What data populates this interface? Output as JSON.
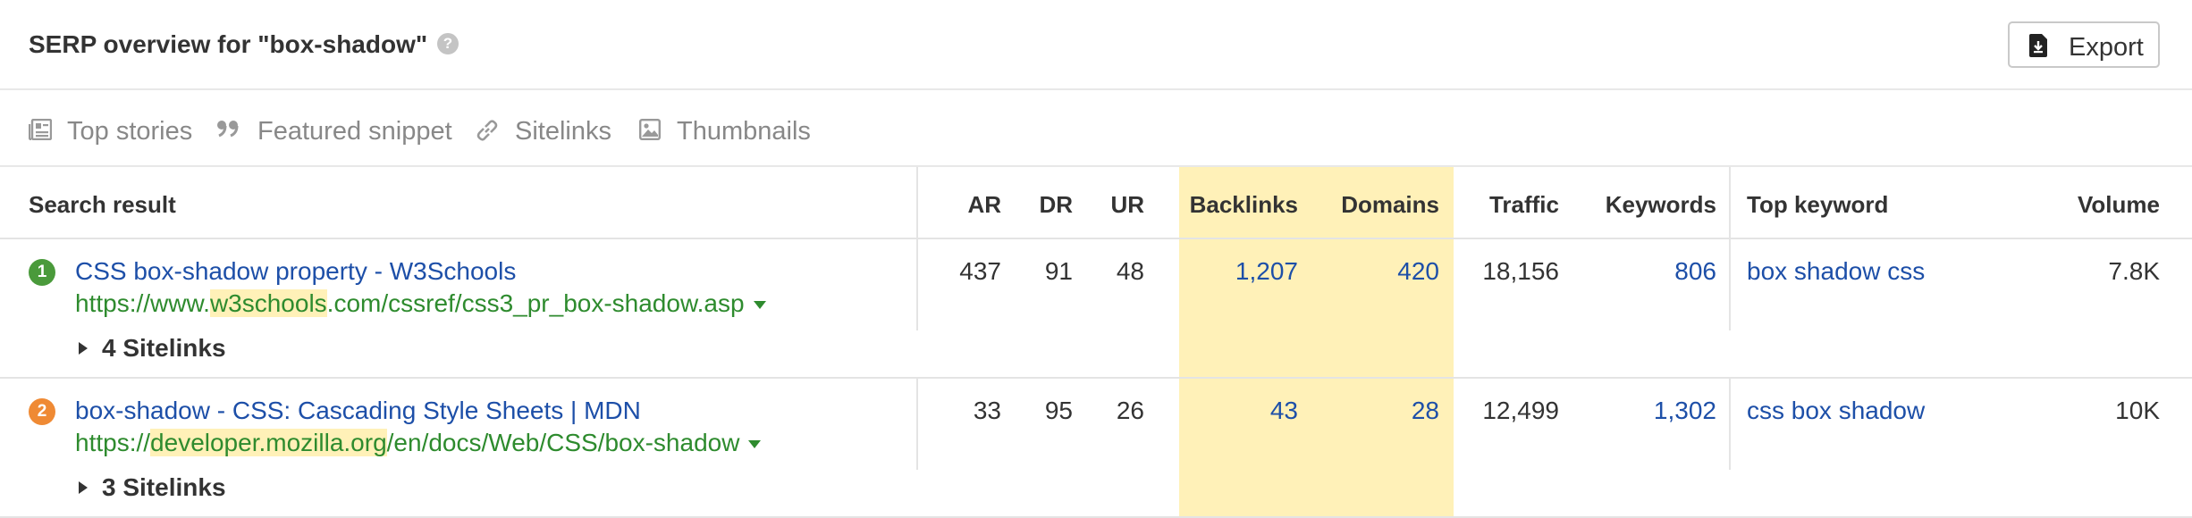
{
  "header": {
    "title": "SERP overview for \"box-shadow\"",
    "help_symbol": "?",
    "export_label": "Export"
  },
  "features": [
    {
      "label": "Top stories",
      "icon": "newspaper-icon"
    },
    {
      "label": "Featured snippet",
      "icon": "quote-icon"
    },
    {
      "label": "Sitelinks",
      "icon": "link-icon"
    },
    {
      "label": "Thumbnails",
      "icon": "image-icon"
    }
  ],
  "table": {
    "columns": {
      "search_result": "Search result",
      "ar": "AR",
      "dr": "DR",
      "ur": "UR",
      "backlinks": "Backlinks",
      "domains": "Domains",
      "traffic": "Traffic",
      "keywords": "Keywords",
      "top_keyword": "Top keyword",
      "volume": "Volume"
    },
    "rows": [
      {
        "position": "1",
        "badge_color": "#4a9a3b",
        "title": "CSS box-shadow property - W3Schools",
        "url_prefix": "https://www.",
        "url_domain": "w3schools",
        "url_suffix": ".com/cssref/css3_pr_box-shadow.asp",
        "sitelinks": "4 Sitelinks",
        "ar": "437",
        "dr": "91",
        "ur": "48",
        "backlinks": "1,207",
        "domains": "420",
        "traffic": "18,156",
        "keywords": "806",
        "top_keyword": "box shadow css",
        "volume": "7.8K"
      },
      {
        "position": "2",
        "badge_color": "#ef8a34",
        "title": "box-shadow - CSS: Cascading Style Sheets | MDN",
        "url_prefix": "https://",
        "url_domain": "developer.mozilla.org",
        "url_suffix": "/en/docs/Web/CSS/box-shadow",
        "sitelinks": "3 Sitelinks",
        "ar": "33",
        "dr": "95",
        "ur": "26",
        "backlinks": "43",
        "domains": "28",
        "traffic": "12,499",
        "keywords": "1,302",
        "top_keyword": "css box shadow",
        "volume": "10K"
      }
    ]
  },
  "colors": {
    "highlight": "#fff1b8",
    "link": "#1d4fa8",
    "url": "#2e8b2e"
  }
}
